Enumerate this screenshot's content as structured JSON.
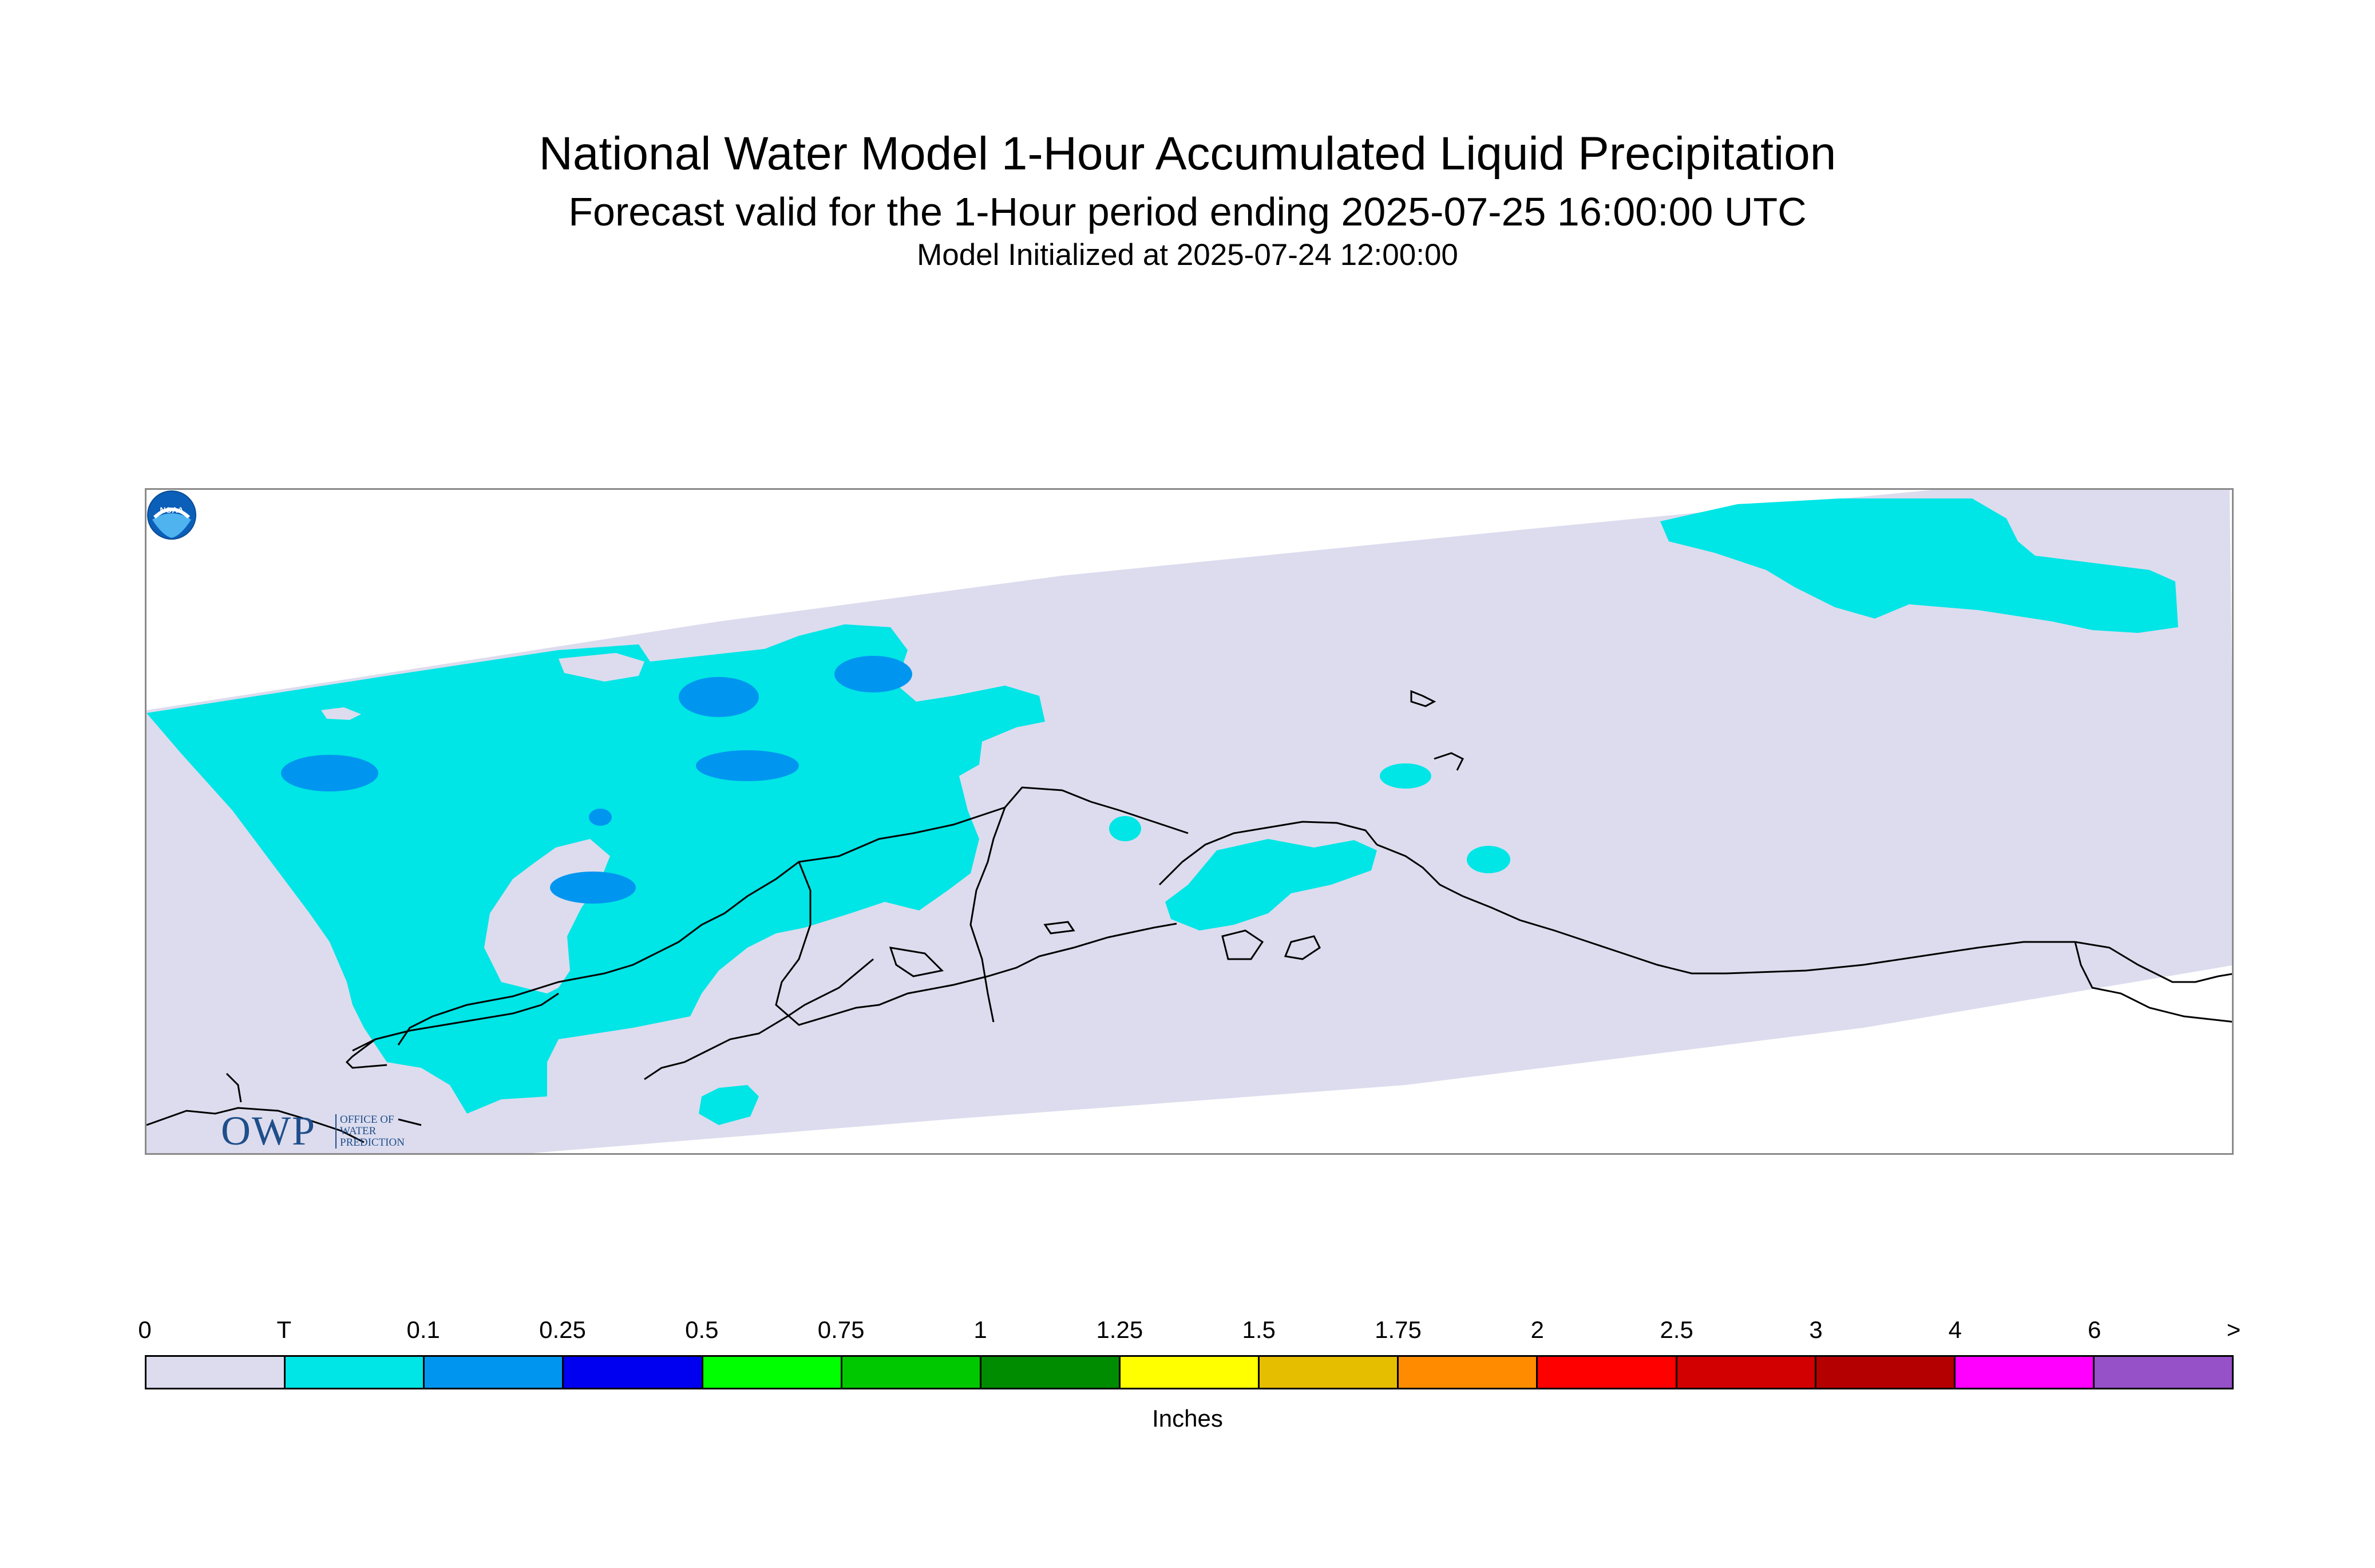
{
  "title": "National Water Model 1-Hour Accumulated Liquid Precipitation",
  "subtitle": "Forecast valid for the 1-Hour period ending 2025-07-25 16:00:00 UTC",
  "init_line": "Model Initialized at 2025-07-24 12:00:00",
  "logos": {
    "owp_mark": "OWP",
    "owp_text": "OFFICE OF\nWATER\nPREDICTION",
    "noaa_text": "NOAA"
  },
  "colors": {
    "no_precip": "#dcdcee",
    "trace": "#00e5e5",
    "light_blue": "#0096f0",
    "coastline": "#000000"
  },
  "legend": {
    "units": "Inches",
    "ticks": [
      "0",
      "T",
      "0.1",
      "0.25",
      "0.5",
      "0.75",
      "1",
      "1.25",
      "1.5",
      "1.75",
      "2",
      "2.5",
      "3",
      "4",
      "6",
      ">"
    ],
    "bins": [
      {
        "range": "0 – T",
        "color": "#dcdcee"
      },
      {
        "range": "T – 0.1",
        "color": "#00e5e5"
      },
      {
        "range": "0.1 – 0.25",
        "color": "#0096f0"
      },
      {
        "range": "0.25 – 0.5",
        "color": "#0000f0"
      },
      {
        "range": "0.5 – 0.75",
        "color": "#00ff00"
      },
      {
        "range": "0.75 – 1",
        "color": "#00c800"
      },
      {
        "range": "1 – 1.25",
        "color": "#008c00"
      },
      {
        "range": "1.25 – 1.5",
        "color": "#ffff00"
      },
      {
        "range": "1.5 – 1.75",
        "color": "#e6be00"
      },
      {
        "range": "1.75 – 2",
        "color": "#ff8c00"
      },
      {
        "range": "2 – 2.5",
        "color": "#ff0000"
      },
      {
        "range": "2.5 – 3",
        "color": "#d20000"
      },
      {
        "range": "3 – 4",
        "color": "#b40000"
      },
      {
        "range": "4 – 6",
        "color": "#ff00ff"
      },
      {
        "range": "6 – >",
        "color": "#9650c8"
      }
    ]
  }
}
